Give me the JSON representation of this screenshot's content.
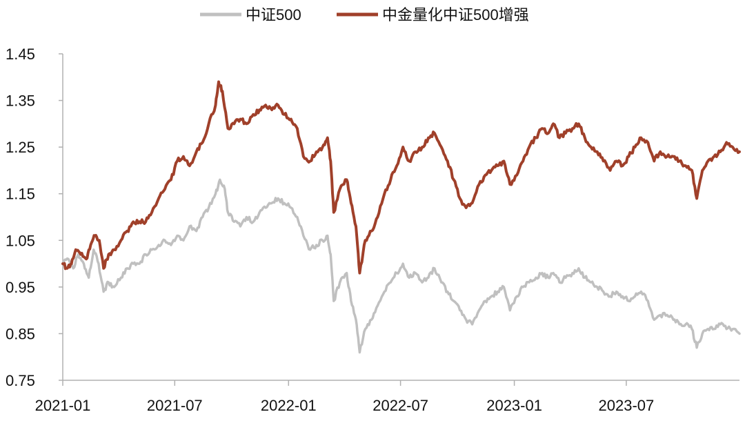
{
  "chart_data": {
    "type": "line",
    "title": "",
    "xlabel": "",
    "ylabel": "",
    "x_ticks": [
      "2021-01",
      "2021-07",
      "2022-01",
      "2022-07",
      "2023-01",
      "2023-07"
    ],
    "y_ticks": [
      "1.45",
      "1.35",
      "1.25",
      "1.15",
      "1.05",
      "0.95",
      "0.85",
      "0.75"
    ],
    "ylim": [
      0.75,
      1.45
    ],
    "xlim": [
      "2021-01-01",
      "2023-12-31"
    ],
    "grid": false,
    "legend_position": "top-center",
    "series": [
      {
        "name": "中证500",
        "color": "#c0c0c0",
        "points": [
          [
            "2021-01-01",
            1.0
          ],
          [
            "2021-01-10",
            1.01
          ],
          [
            "2021-01-18",
            0.99
          ],
          [
            "2021-01-26",
            1.02
          ],
          [
            "2021-02-04",
            1.0
          ],
          [
            "2021-02-12",
            0.97
          ],
          [
            "2021-02-20",
            1.03
          ],
          [
            "2021-02-28",
            1.0
          ],
          [
            "2021-03-08",
            0.94
          ],
          [
            "2021-03-16",
            0.96
          ],
          [
            "2021-03-25",
            0.95
          ],
          [
            "2021-04-05",
            0.97
          ],
          [
            "2021-04-15",
            0.99
          ],
          [
            "2021-04-25",
            1.0
          ],
          [
            "2021-05-05",
            1.0
          ],
          [
            "2021-05-15",
            1.02
          ],
          [
            "2021-05-25",
            1.03
          ],
          [
            "2021-06-05",
            1.04
          ],
          [
            "2021-06-15",
            1.05
          ],
          [
            "2021-06-25",
            1.04
          ],
          [
            "2021-07-05",
            1.06
          ],
          [
            "2021-07-15",
            1.05
          ],
          [
            "2021-07-25",
            1.08
          ],
          [
            "2021-08-05",
            1.07
          ],
          [
            "2021-08-15",
            1.1
          ],
          [
            "2021-08-25",
            1.12
          ],
          [
            "2021-09-05",
            1.15
          ],
          [
            "2021-09-12",
            1.18
          ],
          [
            "2021-09-20",
            1.16
          ],
          [
            "2021-09-25",
            1.11
          ],
          [
            "2021-10-05",
            1.09
          ],
          [
            "2021-10-15",
            1.08
          ],
          [
            "2021-10-25",
            1.1
          ],
          [
            "2021-11-05",
            1.09
          ],
          [
            "2021-11-15",
            1.11
          ],
          [
            "2021-11-25",
            1.12
          ],
          [
            "2021-12-05",
            1.13
          ],
          [
            "2021-12-15",
            1.14
          ],
          [
            "2021-12-25",
            1.13
          ],
          [
            "2022-01-05",
            1.12
          ],
          [
            "2022-01-15",
            1.1
          ],
          [
            "2022-01-25",
            1.06
          ],
          [
            "2022-02-05",
            1.03
          ],
          [
            "2022-02-15",
            1.04
          ],
          [
            "2022-02-25",
            1.05
          ],
          [
            "2022-03-05",
            1.06
          ],
          [
            "2022-03-10",
            1.02
          ],
          [
            "2022-03-15",
            0.92
          ],
          [
            "2022-03-25",
            0.96
          ],
          [
            "2022-04-05",
            0.98
          ],
          [
            "2022-04-12",
            0.92
          ],
          [
            "2022-04-20",
            0.88
          ],
          [
            "2022-04-26",
            0.81
          ],
          [
            "2022-05-05",
            0.86
          ],
          [
            "2022-05-15",
            0.88
          ],
          [
            "2022-05-25",
            0.91
          ],
          [
            "2022-06-05",
            0.94
          ],
          [
            "2022-06-15",
            0.96
          ],
          [
            "2022-06-25",
            0.98
          ],
          [
            "2022-07-05",
            1.0
          ],
          [
            "2022-07-15",
            0.97
          ],
          [
            "2022-07-25",
            0.98
          ],
          [
            "2022-08-05",
            0.96
          ],
          [
            "2022-08-15",
            0.97
          ],
          [
            "2022-08-25",
            0.99
          ],
          [
            "2022-09-05",
            0.96
          ],
          [
            "2022-09-15",
            0.94
          ],
          [
            "2022-09-25",
            0.92
          ],
          [
            "2022-10-05",
            0.9
          ],
          [
            "2022-10-15",
            0.88
          ],
          [
            "2022-10-25",
            0.87
          ],
          [
            "2022-11-05",
            0.9
          ],
          [
            "2022-11-15",
            0.92
          ],
          [
            "2022-11-25",
            0.93
          ],
          [
            "2022-12-05",
            0.94
          ],
          [
            "2022-12-15",
            0.95
          ],
          [
            "2022-12-25",
            0.9
          ],
          [
            "2023-01-05",
            0.93
          ],
          [
            "2023-01-15",
            0.95
          ],
          [
            "2023-01-25",
            0.96
          ],
          [
            "2023-02-05",
            0.97
          ],
          [
            "2023-02-15",
            0.98
          ],
          [
            "2023-02-25",
            0.97
          ],
          [
            "2023-03-05",
            0.98
          ],
          [
            "2023-03-15",
            0.96
          ],
          [
            "2023-03-25",
            0.97
          ],
          [
            "2023-04-05",
            0.98
          ],
          [
            "2023-04-15",
            0.99
          ],
          [
            "2023-04-25",
            0.97
          ],
          [
            "2023-05-05",
            0.96
          ],
          [
            "2023-05-15",
            0.95
          ],
          [
            "2023-05-25",
            0.94
          ],
          [
            "2023-06-05",
            0.93
          ],
          [
            "2023-06-15",
            0.94
          ],
          [
            "2023-06-25",
            0.93
          ],
          [
            "2023-07-05",
            0.92
          ],
          [
            "2023-07-15",
            0.93
          ],
          [
            "2023-07-25",
            0.94
          ],
          [
            "2023-08-05",
            0.92
          ],
          [
            "2023-08-15",
            0.88
          ],
          [
            "2023-08-25",
            0.89
          ],
          [
            "2023-09-05",
            0.89
          ],
          [
            "2023-09-15",
            0.88
          ],
          [
            "2023-09-25",
            0.87
          ],
          [
            "2023-10-05",
            0.87
          ],
          [
            "2023-10-15",
            0.86
          ],
          [
            "2023-10-23",
            0.82
          ],
          [
            "2023-11-01",
            0.85
          ],
          [
            "2023-11-10",
            0.86
          ],
          [
            "2023-11-20",
            0.86
          ],
          [
            "2023-11-30",
            0.87
          ],
          [
            "2023-12-10",
            0.86
          ],
          [
            "2023-12-20",
            0.86
          ],
          [
            "2023-12-31",
            0.85
          ]
        ]
      },
      {
        "name": "中金量化中证500增强",
        "color": "#a0402a",
        "points": [
          [
            "2021-01-01",
            1.0
          ],
          [
            "2021-01-08",
            0.99
          ],
          [
            "2021-01-15",
            1.0
          ],
          [
            "2021-01-22",
            1.03
          ],
          [
            "2021-01-30",
            1.02
          ],
          [
            "2021-02-08",
            1.01
          ],
          [
            "2021-02-15",
            1.04
          ],
          [
            "2021-02-22",
            1.06
          ],
          [
            "2021-03-01",
            1.05
          ],
          [
            "2021-03-08",
            0.99
          ],
          [
            "2021-03-16",
            1.02
          ],
          [
            "2021-03-25",
            1.03
          ],
          [
            "2021-04-05",
            1.05
          ],
          [
            "2021-04-15",
            1.07
          ],
          [
            "2021-04-25",
            1.09
          ],
          [
            "2021-05-05",
            1.09
          ],
          [
            "2021-05-15",
            1.09
          ],
          [
            "2021-05-25",
            1.11
          ],
          [
            "2021-06-05",
            1.14
          ],
          [
            "2021-06-15",
            1.16
          ],
          [
            "2021-06-25",
            1.18
          ],
          [
            "2021-07-05",
            1.22
          ],
          [
            "2021-07-15",
            1.23
          ],
          [
            "2021-07-25",
            1.21
          ],
          [
            "2021-08-05",
            1.24
          ],
          [
            "2021-08-15",
            1.26
          ],
          [
            "2021-08-25",
            1.3
          ],
          [
            "2021-09-05",
            1.34
          ],
          [
            "2021-09-10",
            1.39
          ],
          [
            "2021-09-16",
            1.37
          ],
          [
            "2021-09-25",
            1.29
          ],
          [
            "2021-10-05",
            1.3
          ],
          [
            "2021-10-15",
            1.31
          ],
          [
            "2021-10-25",
            1.3
          ],
          [
            "2021-11-05",
            1.32
          ],
          [
            "2021-11-15",
            1.33
          ],
          [
            "2021-11-25",
            1.34
          ],
          [
            "2021-12-05",
            1.33
          ],
          [
            "2021-12-15",
            1.34
          ],
          [
            "2021-12-25",
            1.32
          ],
          [
            "2022-01-05",
            1.31
          ],
          [
            "2022-01-15",
            1.29
          ],
          [
            "2022-01-25",
            1.23
          ],
          [
            "2022-02-05",
            1.22
          ],
          [
            "2022-02-15",
            1.24
          ],
          [
            "2022-02-25",
            1.25
          ],
          [
            "2022-03-05",
            1.27
          ],
          [
            "2022-03-10",
            1.22
          ],
          [
            "2022-03-15",
            1.11
          ],
          [
            "2022-03-25",
            1.16
          ],
          [
            "2022-04-05",
            1.18
          ],
          [
            "2022-04-12",
            1.13
          ],
          [
            "2022-04-20",
            1.08
          ],
          [
            "2022-04-26",
            0.98
          ],
          [
            "2022-05-05",
            1.05
          ],
          [
            "2022-05-15",
            1.07
          ],
          [
            "2022-05-25",
            1.1
          ],
          [
            "2022-06-05",
            1.15
          ],
          [
            "2022-06-15",
            1.18
          ],
          [
            "2022-06-25",
            1.21
          ],
          [
            "2022-07-05",
            1.25
          ],
          [
            "2022-07-15",
            1.22
          ],
          [
            "2022-07-25",
            1.24
          ],
          [
            "2022-08-05",
            1.25
          ],
          [
            "2022-08-15",
            1.27
          ],
          [
            "2022-08-25",
            1.28
          ],
          [
            "2022-09-05",
            1.25
          ],
          [
            "2022-09-15",
            1.22
          ],
          [
            "2022-09-25",
            1.18
          ],
          [
            "2022-10-05",
            1.14
          ],
          [
            "2022-10-15",
            1.12
          ],
          [
            "2022-10-25",
            1.13
          ],
          [
            "2022-11-05",
            1.17
          ],
          [
            "2022-11-15",
            1.19
          ],
          [
            "2022-11-25",
            1.2
          ],
          [
            "2022-12-05",
            1.21
          ],
          [
            "2022-12-15",
            1.22
          ],
          [
            "2022-12-25",
            1.17
          ],
          [
            "2023-01-05",
            1.19
          ],
          [
            "2023-01-15",
            1.22
          ],
          [
            "2023-01-25",
            1.25
          ],
          [
            "2023-02-05",
            1.27
          ],
          [
            "2023-02-15",
            1.29
          ],
          [
            "2023-02-25",
            1.28
          ],
          [
            "2023-03-05",
            1.3
          ],
          [
            "2023-03-15",
            1.27
          ],
          [
            "2023-03-25",
            1.28
          ],
          [
            "2023-04-05",
            1.29
          ],
          [
            "2023-04-15",
            1.3
          ],
          [
            "2023-04-25",
            1.27
          ],
          [
            "2023-05-05",
            1.25
          ],
          [
            "2023-05-15",
            1.24
          ],
          [
            "2023-05-25",
            1.22
          ],
          [
            "2023-06-05",
            1.2
          ],
          [
            "2023-06-15",
            1.22
          ],
          [
            "2023-06-25",
            1.21
          ],
          [
            "2023-07-05",
            1.23
          ],
          [
            "2023-07-15",
            1.25
          ],
          [
            "2023-07-25",
            1.27
          ],
          [
            "2023-08-05",
            1.26
          ],
          [
            "2023-08-15",
            1.22
          ],
          [
            "2023-08-25",
            1.24
          ],
          [
            "2023-09-05",
            1.23
          ],
          [
            "2023-09-15",
            1.23
          ],
          [
            "2023-09-25",
            1.22
          ],
          [
            "2023-10-05",
            1.21
          ],
          [
            "2023-10-15",
            1.2
          ],
          [
            "2023-10-23",
            1.14
          ],
          [
            "2023-11-01",
            1.2
          ],
          [
            "2023-11-10",
            1.22
          ],
          [
            "2023-11-20",
            1.23
          ],
          [
            "2023-11-30",
            1.24
          ],
          [
            "2023-12-10",
            1.26
          ],
          [
            "2023-12-20",
            1.25
          ],
          [
            "2023-12-31",
            1.24
          ]
        ]
      }
    ]
  }
}
